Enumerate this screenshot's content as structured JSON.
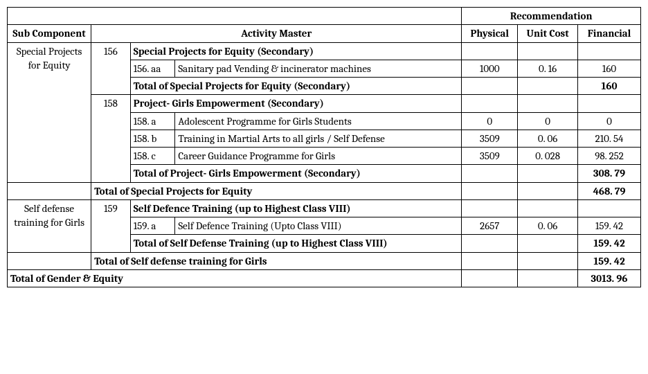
{
  "headers": {
    "recommendation": "Recommendation",
    "sub_component": "Sub Component",
    "activity_master": "Activity Master",
    "physical": "Physical",
    "unit_cost": "Unit Cost",
    "financial": "Financial"
  },
  "sections": {
    "spe": {
      "label": "Special Projects for Equity",
      "g156": {
        "id": "156",
        "title": "Special Projects for Equity   (Secondary)",
        "row_aa": {
          "code": "156. aa",
          "desc": "Sanitary pad Vending & incinerator machines",
          "phys": "1000",
          "unit": "0. 16",
          "fin": "160"
        },
        "total": {
          "label": "Total of Special Projects for Equity   (Secondary)",
          "fin": "160"
        }
      },
      "g158": {
        "id": "158",
        "title": "Project- Girls Empowerment  (Secondary)",
        "row_a": {
          "code": "158. a",
          "desc": "Adolescent Programme for Girls Students",
          "phys": "0",
          "unit": "0",
          "fin": "0"
        },
        "row_b": {
          "code": "158. b",
          "desc": "Training in Martial Arts to all girls / Self Defense",
          "phys": "3509",
          "unit": "0. 06",
          "fin": "210. 54"
        },
        "row_c": {
          "code": "158. c",
          "desc": "Career Guidance Programme for Girls",
          "phys": "3509",
          "unit": "0. 028",
          "fin": "98. 252"
        },
        "total": {
          "label": "Total of Project- Girls Empowerment  (Secondary)",
          "fin": "308. 79"
        }
      },
      "total": {
        "label": "Total of Special Projects for Equity",
        "fin": "468. 79"
      }
    },
    "sdg": {
      "label": "Self defense training for Girls",
      "g159": {
        "id": "159",
        "title": "Self Defence Training  (up to Highest Class VIII)",
        "row_a": {
          "code": "159. a",
          "desc": "Self Defence Training  (Upto Class VIII)",
          "phys": "2657",
          "unit": "0. 06",
          "fin": "159. 42"
        },
        "total": {
          "label": "Total of Self Defense Training  (up to Highest Class VIII)",
          "fin": "159. 42"
        }
      },
      "total": {
        "label": "Total of Self defense training for Girls",
        "fin": "159. 42"
      }
    },
    "grand_total": {
      "label": "Total of Gender & Equity",
      "fin": "3013. 96"
    }
  }
}
